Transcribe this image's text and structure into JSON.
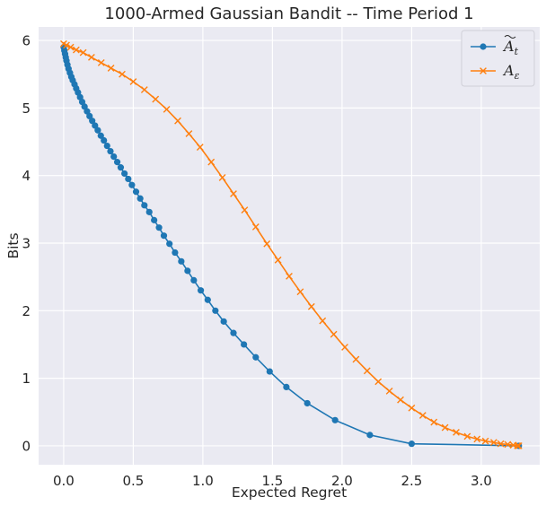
{
  "chart_data": {
    "type": "line",
    "title": "1000-Armed Gaussian Bandit -- Time Period 1",
    "xlabel": "Expected Regret",
    "ylabel": "Bits",
    "xlim": [
      -0.18,
      3.42
    ],
    "ylim": [
      -0.28,
      6.2
    ],
    "xticks": [
      0.0,
      0.5,
      1.0,
      1.5,
      2.0,
      2.5,
      3.0
    ],
    "xtick_labels": [
      "0.0",
      "0.5",
      "1.0",
      "1.5",
      "2.0",
      "2.5",
      "3.0"
    ],
    "yticks": [
      0,
      1,
      2,
      3,
      4,
      5,
      6
    ],
    "ytick_labels": [
      "0",
      "1",
      "2",
      "3",
      "4",
      "5",
      "6"
    ],
    "grid": true,
    "legend_position": "top-right",
    "series": [
      {
        "name": "Ã_t",
        "legend_base": "A",
        "legend_sub": "t",
        "legend_tilde": true,
        "color": "#1f77b4",
        "marker": "circle",
        "points": [
          [
            0.0,
            5.9
          ],
          [
            0.005,
            5.85
          ],
          [
            0.01,
            5.8
          ],
          [
            0.015,
            5.75
          ],
          [
            0.02,
            5.7
          ],
          [
            0.027,
            5.64
          ],
          [
            0.035,
            5.58
          ],
          [
            0.045,
            5.52
          ],
          [
            0.055,
            5.46
          ],
          [
            0.065,
            5.41
          ],
          [
            0.078,
            5.35
          ],
          [
            0.09,
            5.29
          ],
          [
            0.103,
            5.23
          ],
          [
            0.118,
            5.16
          ],
          [
            0.133,
            5.09
          ],
          [
            0.15,
            5.02
          ],
          [
            0.168,
            4.95
          ],
          [
            0.186,
            4.88
          ],
          [
            0.205,
            4.81
          ],
          [
            0.225,
            4.74
          ],
          [
            0.245,
            4.67
          ],
          [
            0.267,
            4.59
          ],
          [
            0.289,
            4.52
          ],
          [
            0.312,
            4.44
          ],
          [
            0.336,
            4.36
          ],
          [
            0.36,
            4.28
          ],
          [
            0.385,
            4.2
          ],
          [
            0.41,
            4.12
          ],
          [
            0.437,
            4.03
          ],
          [
            0.464,
            3.95
          ],
          [
            0.49,
            3.86
          ],
          [
            0.52,
            3.76
          ],
          [
            0.55,
            3.66
          ],
          [
            0.58,
            3.56
          ],
          [
            0.615,
            3.46
          ],
          [
            0.65,
            3.34
          ],
          [
            0.685,
            3.23
          ],
          [
            0.72,
            3.11
          ],
          [
            0.76,
            2.99
          ],
          [
            0.8,
            2.86
          ],
          [
            0.845,
            2.73
          ],
          [
            0.89,
            2.59
          ],
          [
            0.935,
            2.45
          ],
          [
            0.985,
            2.3
          ],
          [
            1.035,
            2.16
          ],
          [
            1.09,
            2.0
          ],
          [
            1.15,
            1.84
          ],
          [
            1.22,
            1.67
          ],
          [
            1.295,
            1.5
          ],
          [
            1.38,
            1.31
          ],
          [
            1.48,
            1.1
          ],
          [
            1.6,
            0.87
          ],
          [
            1.75,
            0.63
          ],
          [
            1.95,
            0.38
          ],
          [
            2.2,
            0.16
          ],
          [
            2.5,
            0.03
          ],
          [
            3.27,
            0.0
          ]
        ]
      },
      {
        "name": "A_ε",
        "legend_base": "A",
        "legend_sub": "ε",
        "legend_tilde": false,
        "color": "#ff7f0e",
        "marker": "x",
        "points": [
          [
            0.0,
            5.95
          ],
          [
            0.02,
            5.93
          ],
          [
            0.05,
            5.9
          ],
          [
            0.09,
            5.86
          ],
          [
            0.14,
            5.82
          ],
          [
            0.2,
            5.75
          ],
          [
            0.27,
            5.67
          ],
          [
            0.34,
            5.59
          ],
          [
            0.42,
            5.5
          ],
          [
            0.5,
            5.39
          ],
          [
            0.58,
            5.27
          ],
          [
            0.66,
            5.13
          ],
          [
            0.74,
            4.98
          ],
          [
            0.82,
            4.81
          ],
          [
            0.9,
            4.62
          ],
          [
            0.98,
            4.42
          ],
          [
            1.06,
            4.2
          ],
          [
            1.14,
            3.97
          ],
          [
            1.22,
            3.73
          ],
          [
            1.3,
            3.49
          ],
          [
            1.38,
            3.24
          ],
          [
            1.46,
            2.99
          ],
          [
            1.54,
            2.75
          ],
          [
            1.62,
            2.51
          ],
          [
            1.7,
            2.28
          ],
          [
            1.78,
            2.06
          ],
          [
            1.86,
            1.85
          ],
          [
            1.94,
            1.65
          ],
          [
            2.02,
            1.46
          ],
          [
            2.1,
            1.28
          ],
          [
            2.18,
            1.11
          ],
          [
            2.26,
            0.95
          ],
          [
            2.34,
            0.81
          ],
          [
            2.42,
            0.68
          ],
          [
            2.5,
            0.56
          ],
          [
            2.58,
            0.45
          ],
          [
            2.66,
            0.35
          ],
          [
            2.74,
            0.27
          ],
          [
            2.82,
            0.2
          ],
          [
            2.9,
            0.14
          ],
          [
            2.97,
            0.1
          ],
          [
            3.03,
            0.07
          ],
          [
            3.09,
            0.05
          ],
          [
            3.14,
            0.03
          ],
          [
            3.19,
            0.02
          ],
          [
            3.23,
            0.01
          ],
          [
            3.26,
            0.0
          ],
          [
            3.27,
            0.0
          ]
        ]
      }
    ]
  }
}
